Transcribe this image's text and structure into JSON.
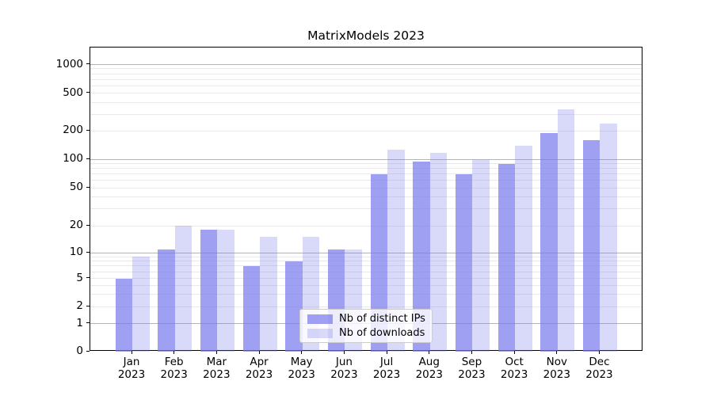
{
  "title": "MatrixModels 2023",
  "chart_data": {
    "type": "bar",
    "title": "MatrixModels 2023",
    "categories": [
      "Jan 2023",
      "Feb 2023",
      "Mar 2023",
      "Apr 2023",
      "May 2023",
      "Jun 2023",
      "Jul 2023",
      "Aug 2023",
      "Sep 2023",
      "Oct 2023",
      "Nov 2023",
      "Dec 2023"
    ],
    "month_labels": [
      "Jan",
      "Feb",
      "Mar",
      "Apr",
      "May",
      "Jun",
      "Jul",
      "Aug",
      "Sep",
      "Oct",
      "Nov",
      "Dec"
    ],
    "year_label": "2023",
    "series": [
      {
        "name": "Nb of distinct IPs",
        "color": "rgba(119,119,238,0.70)",
        "values": [
          5,
          11,
          18,
          7,
          8,
          11,
          69,
          95,
          70,
          90,
          190,
          160
        ]
      },
      {
        "name": "Nb of downloads",
        "color": "rgba(119,119,238,0.28)",
        "values": [
          9,
          20,
          18,
          15,
          15,
          11,
          127,
          117,
          98,
          140,
          335,
          240
        ]
      }
    ],
    "xlabel": "",
    "ylabel": "",
    "yscale": "log (linear segment between 0 and 1)",
    "yticks": [
      0,
      1,
      2,
      5,
      10,
      20,
      50,
      100,
      200,
      500,
      1000
    ],
    "ylim": [
      0,
      1500
    ],
    "grid": "horizontal, major and minor",
    "legend": {
      "position": "lower center",
      "entries": [
        "Nb of distinct IPs",
        "Nb of downloads"
      ]
    }
  },
  "colors": {
    "bar_distinct_ips": "rgba(119,119,238,0.70)",
    "bar_downloads": "rgba(119,119,238,0.28)",
    "major_gridline": "#b4b4b4",
    "minor_gridline": "#e9e9e9",
    "axis": "#000000",
    "text": "#000000"
  }
}
